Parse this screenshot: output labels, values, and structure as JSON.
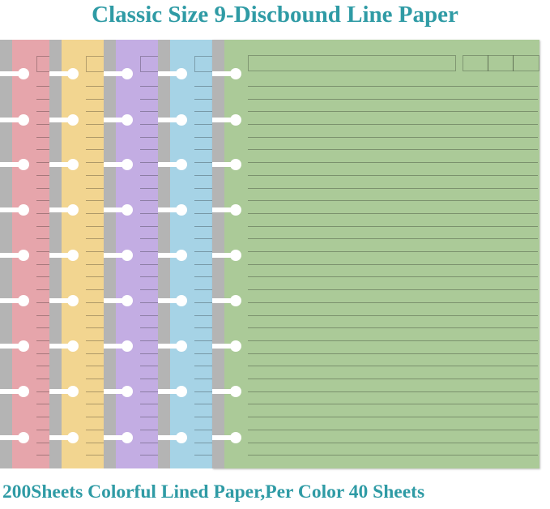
{
  "title": "Classic Size 9-Discbound Line Paper",
  "caption": "200Sheets Colorful Lined Paper,Per Color 40 Sheets",
  "sheets": [
    {
      "color_name": "pink",
      "color": "#e6a5ab"
    },
    {
      "color_name": "yellow",
      "color": "#f2d590"
    },
    {
      "color_name": "purple",
      "color": "#c3ade3"
    },
    {
      "color_name": "blue",
      "color": "#a6d3e6"
    },
    {
      "color_name": "green",
      "color": "#abca98"
    }
  ],
  "disc_count": 9,
  "colors": {
    "text": "#2f9ba5",
    "strip": "#b4b4b4"
  }
}
